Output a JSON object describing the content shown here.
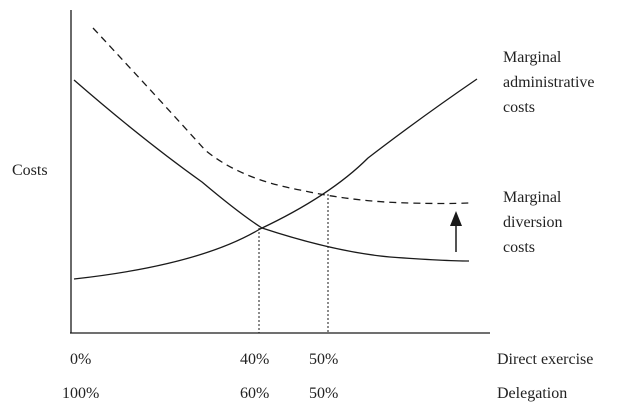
{
  "diagram": {
    "y_axis_label": "Costs",
    "curves": {
      "administrative": {
        "label_lines": [
          "Marginal",
          "administrative",
          "costs"
        ]
      },
      "diversion": {
        "label_lines": [
          "Marginal",
          "diversion",
          "costs"
        ]
      }
    },
    "scales": {
      "direct_exercise": {
        "name": "Direct exercise",
        "ticks": [
          "0%",
          "40%",
          "50%"
        ]
      },
      "delegation": {
        "name": "Delegation",
        "ticks": [
          "100%",
          "60%",
          "50%"
        ]
      }
    },
    "arrow": {
      "direction": "up"
    }
  }
}
